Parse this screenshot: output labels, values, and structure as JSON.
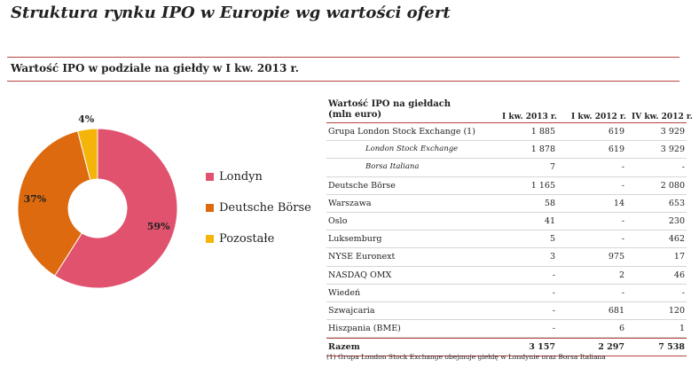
{
  "title": "Struktura rynku IPO w Europie wg wartości ofert",
  "subtitle": "Wartość IPO w podziale na giełdy w I kw. 2013 r.",
  "chart_data": {
    "type": "pie",
    "labels": [
      "Londyn",
      "Deutsche Börse",
      "Pozostałe"
    ],
    "values": [
      59,
      37,
      4
    ],
    "value_labels": [
      "59%",
      "37%",
      "4%"
    ],
    "colors": [
      "#e0526e",
      "#dd6a0e",
      "#f5b40a"
    ],
    "legend_position": "right"
  },
  "table": {
    "header_line1": "Wartość IPO na giełdach",
    "header_line2": "(mln euro)",
    "columns": [
      "I kw. 2013 r.",
      "I kw. 2012 r.",
      "IV kw. 2012 r."
    ],
    "rows": [
      {
        "label": "Grupa London Stock Exchange (1)",
        "v": [
          "1 885",
          "619",
          "3 929"
        ],
        "sub": false
      },
      {
        "label": "London Stock Exchange",
        "v": [
          "1 878",
          "619",
          "3 929"
        ],
        "sub": true
      },
      {
        "label": "Borsa Italiana",
        "v": [
          "7",
          "-",
          "-"
        ],
        "sub": true
      },
      {
        "label": "Deutsche Börse",
        "v": [
          "1 165",
          "-",
          "2 080"
        ],
        "sub": false
      },
      {
        "label": "Warszawa",
        "v": [
          "58",
          "14",
          "653"
        ],
        "sub": false
      },
      {
        "label": "Oslo",
        "v": [
          "41",
          "-",
          "230"
        ],
        "sub": false
      },
      {
        "label": "Luksemburg",
        "v": [
          "5",
          "-",
          "462"
        ],
        "sub": false
      },
      {
        "label": "NYSE Euronext",
        "v": [
          "3",
          "975",
          "17"
        ],
        "sub": false
      },
      {
        "label": "NASDAQ OMX",
        "v": [
          "-",
          "2",
          "46"
        ],
        "sub": false
      },
      {
        "label": "Wiedeń",
        "v": [
          "-",
          "-",
          "-"
        ],
        "sub": false
      },
      {
        "label": "Szwajcaria",
        "v": [
          "-",
          "681",
          "120"
        ],
        "sub": false
      },
      {
        "label": "Hiszpania (BME)",
        "v": [
          "-",
          "6",
          "1"
        ],
        "sub": false
      }
    ],
    "total": {
      "label": "Razem",
      "v": [
        "3 157",
        "2 297",
        "7 538"
      ]
    },
    "footnote": "(1) Grupa London Stock Exchange obejmuje giełdę w Londynie oraz Borsa Italiana"
  }
}
